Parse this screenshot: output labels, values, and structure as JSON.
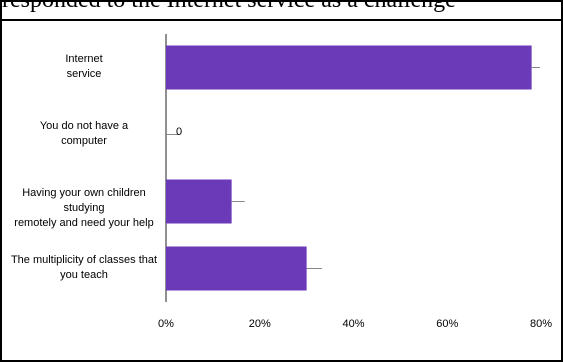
{
  "top_strip_text": "responded to the Internet service as a challenge",
  "chart_data": {
    "type": "bar",
    "orientation": "horizontal",
    "categories": [
      "Internet service",
      "You do not have a computer",
      "Having your own children studying remotely and need your help",
      "The multiplicity of classes that you teach"
    ],
    "category_lines": [
      [
        "Internet",
        "service"
      ],
      [
        "You do not have a",
        "computer"
      ],
      [
        "Having your own children studying",
        "remotely and need your help"
      ],
      [
        "The multiplicity of classes that",
        "you teach"
      ]
    ],
    "values": [
      78,
      0,
      14,
      30
    ],
    "value_labels": [
      "",
      "0",
      "",
      ""
    ],
    "error": [
      0.5,
      1.5,
      1.5,
      2
    ],
    "xlim": [
      0,
      80
    ],
    "xticks": [
      "0%",
      "20%",
      "40%",
      "60%",
      "80%"
    ],
    "grid": false,
    "bar_color": "#6a3ab8",
    "title": "",
    "xlabel": "",
    "ylabel": ""
  }
}
